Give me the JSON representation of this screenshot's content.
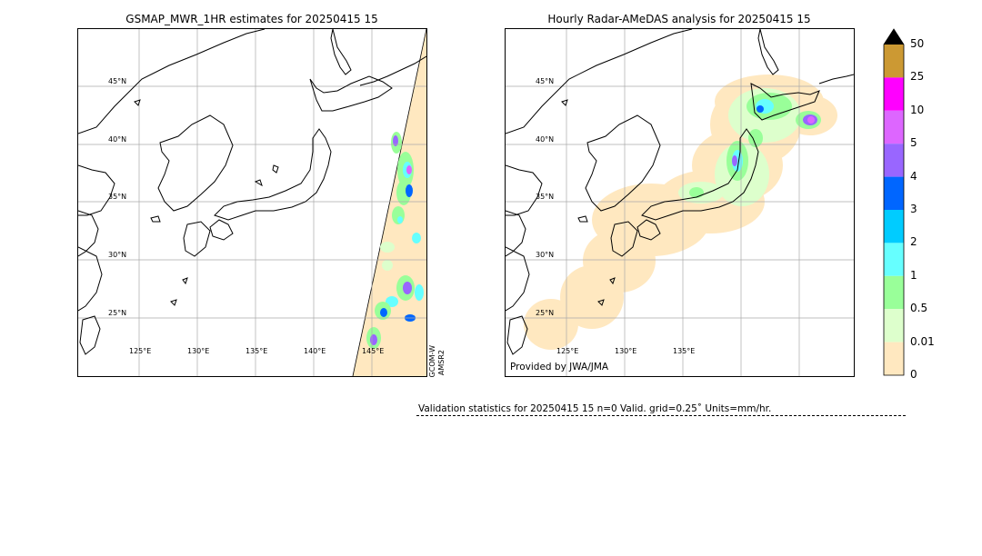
{
  "left_map": {
    "title": "GSMAP_MWR_1HR estimates for 20250415 15",
    "lat_labels": [
      "45°N",
      "40°N",
      "35°N",
      "30°N",
      "25°N"
    ],
    "lon_labels": [
      "125°E",
      "130°E",
      "135°E",
      "140°E",
      "145°E"
    ],
    "sensor_label_1": "GCOM-W",
    "sensor_label_2": "AMSR2"
  },
  "right_map": {
    "title": "Hourly Radar-AMeDAS analysis for 20250415 15",
    "lat_labels": [
      "45°N",
      "40°N",
      "35°N",
      "30°N",
      "25°N"
    ],
    "lon_labels": [
      "125°E",
      "130°E",
      "135°E"
    ],
    "provider": "Provided by JWA/JMA"
  },
  "colorbar": {
    "labels": [
      "50",
      "25",
      "10",
      "5",
      "4",
      "3",
      "2",
      "1",
      "0.5",
      "0.01",
      "0"
    ],
    "colors": [
      "#cc9933",
      "#ff00ff",
      "#dd66ff",
      "#9966ff",
      "#0066ff",
      "#00ccff",
      "#66ffff",
      "#99ff99",
      "#ddffcc",
      "#ffe8c0"
    ],
    "overflow_color": "#000000"
  },
  "validation": {
    "text": "Validation statistics for 20250415 15  n=0 Valid. grid=0.25˚ Units=mm/hr."
  },
  "colors": {
    "land_outline": "#000000",
    "grid": "#aaaaaa",
    "swath_fill": "#ffe8c0"
  }
}
